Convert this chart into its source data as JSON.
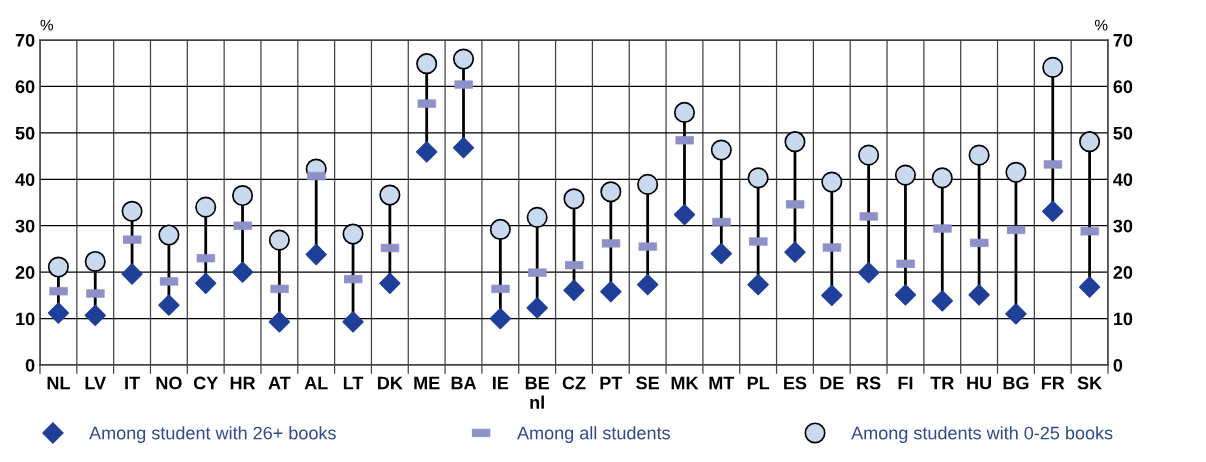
{
  "chart_data": {
    "type": "scatter",
    "ylabel": "%",
    "y2label": "%",
    "categories": [
      "NL",
      "LV",
      "IT",
      "NO",
      "CY",
      "HR",
      "AT",
      "AL",
      "LT",
      "DK",
      "ME",
      "BA",
      "IE",
      "BE\nnl",
      "CZ",
      "PT",
      "SE",
      "MK",
      "MT",
      "PL",
      "ES",
      "DE",
      "RS",
      "FI",
      "TR",
      "HU",
      "BG",
      "FR",
      "SK"
    ],
    "series": [
      {
        "name": "Among student with 26+ books",
        "color": "#1f3f99",
        "marker": "diamond",
        "values": [
          11.2,
          10.7,
          19.6,
          12.9,
          17.6,
          20,
          9.3,
          23.8,
          9.3,
          17.6,
          45.9,
          46.8,
          10,
          12.3,
          16.1,
          15.8,
          17.3,
          32.4,
          24,
          17.3,
          24.3,
          15,
          19.9,
          15.1,
          13.8,
          15.1,
          11,
          33.1,
          16.8
        ]
      },
      {
        "name": "Among all students",
        "color": "#8e90c8",
        "values": [
          15.9,
          15.4,
          27,
          18,
          23,
          30,
          16.4,
          40.7,
          18.5,
          25.2,
          56.3,
          60.4,
          16.4,
          19.9,
          21.5,
          26.2,
          25.5,
          48.4,
          30.8,
          26.6,
          34.6,
          25.3,
          32,
          21.8,
          29.4,
          26.3,
          29.1,
          43.2,
          28.8
        ]
      },
      {
        "name": "Among students with 0-25 books",
        "color": "#c9d9f0",
        "marker": "circle",
        "values": [
          21.1,
          22.3,
          33.1,
          28,
          34,
          36.5,
          26.9,
          42.2,
          28.2,
          36.6,
          64.9,
          65.9,
          29.2,
          31.8,
          35.8,
          37.3,
          38.9,
          54.4,
          46.3,
          40.3,
          48.1,
          39.4,
          45.2,
          40.9,
          40.3,
          45.2,
          41.5,
          64.1,
          48.1
        ]
      }
    ],
    "ylim": [
      0,
      70
    ],
    "yticks": [
      0,
      10,
      20,
      30,
      40,
      50,
      60,
      70
    ],
    "y2lim": [
      0,
      70
    ],
    "y2ticks": [
      0,
      10,
      20,
      30,
      40,
      50,
      60,
      70
    ],
    "grid": true,
    "legend": "bottom"
  }
}
